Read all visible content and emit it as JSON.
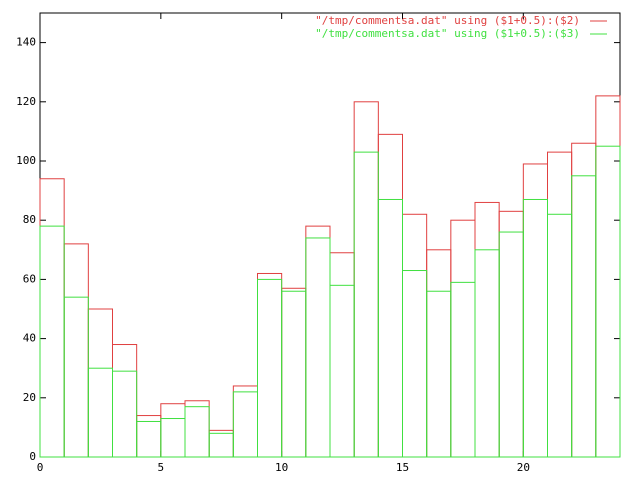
{
  "chart_data": {
    "type": "bar",
    "x": [
      0.5,
      1.5,
      2.5,
      3.5,
      4.5,
      5.5,
      6.5,
      7.5,
      8.5,
      9.5,
      10.5,
      11.5,
      12.5,
      13.5,
      14.5,
      15.5,
      16.5,
      17.5,
      18.5,
      19.5,
      20.5,
      21.5,
      22.5,
      23.5
    ],
    "series": [
      {
        "name": "\"/tmp/commentsa.dat\" using ($1+0.5):($2)",
        "color": "#e04040",
        "values": [
          94,
          72,
          50,
          38,
          14,
          18,
          19,
          9,
          24,
          62,
          57,
          78,
          69,
          120,
          109,
          82,
          70,
          80,
          86,
          83,
          99,
          103,
          106,
          122
        ]
      },
      {
        "name": "\"/tmp/commentsa.dat\" using ($1+0.5):($3)",
        "color": "#40e040",
        "values": [
          78,
          54,
          30,
          29,
          12,
          13,
          17,
          8,
          22,
          60,
          56,
          74,
          58,
          103,
          87,
          63,
          56,
          59,
          70,
          76,
          87,
          82,
          95,
          105
        ]
      }
    ],
    "xlim": [
      0,
      24
    ],
    "xticks": [
      0,
      5,
      10,
      15,
      20
    ],
    "ylim": [
      0,
      150
    ],
    "yticks": [
      0,
      20,
      40,
      60,
      80,
      100,
      120,
      140
    ]
  }
}
